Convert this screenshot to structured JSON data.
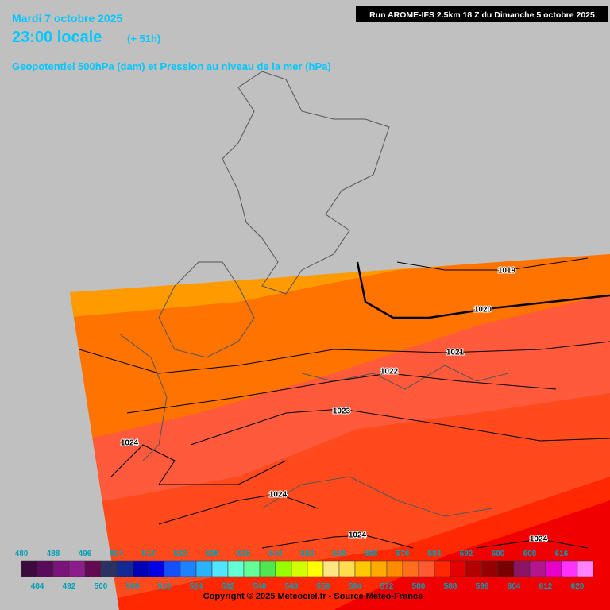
{
  "header": {
    "date": "Mardi 7 octobre 2025",
    "time": "23:00 locale",
    "lead": "(+ 51h)",
    "title": "Geopotentiel 500hPa (dam) et Pression au niveau de la mer (hPa)",
    "run": "Run AROME-IFS 2.5km 18 Z du Dimanche 5 octobre 2025"
  },
  "isobar_labels": [
    "1019",
    "1020",
    "1021",
    "1022",
    "1023",
    "1024",
    "1024",
    "1024",
    "1024"
  ],
  "legend": {
    "levels": [
      {
        "label": "480",
        "color": "#3c0a3c"
      },
      {
        "label": "484",
        "color": "#5a0a5a"
      },
      {
        "label": "488",
        "color": "#7a147a"
      },
      {
        "label": "492",
        "color": "#8c1e8c"
      },
      {
        "label": "496",
        "color": "#640a50"
      },
      {
        "label": "500",
        "color": "#2a3264"
      },
      {
        "label": "504",
        "color": "#142896"
      },
      {
        "label": "508",
        "color": "#0000b4"
      },
      {
        "label": "512",
        "color": "#0000e6"
      },
      {
        "label": "516",
        "color": "#1450ff"
      },
      {
        "label": "520",
        "color": "#1e82ff"
      },
      {
        "label": "524",
        "color": "#28b4ff"
      },
      {
        "label": "528",
        "color": "#50e6ff"
      },
      {
        "label": "532",
        "color": "#64ffd2"
      },
      {
        "label": "536",
        "color": "#64ff96"
      },
      {
        "label": "540",
        "color": "#50e650"
      },
      {
        "label": "544",
        "color": "#96ff00"
      },
      {
        "label": "548",
        "color": "#d2ff00"
      },
      {
        "label": "552",
        "color": "#ffff00"
      },
      {
        "label": "556",
        "color": "#ffe682"
      },
      {
        "label": "560",
        "color": "#ffdc50"
      },
      {
        "label": "564",
        "color": "#ffc800"
      },
      {
        "label": "568",
        "color": "#ffaa00"
      },
      {
        "label": "572",
        "color": "#ff8c00"
      },
      {
        "label": "576",
        "color": "#ff6e1e"
      },
      {
        "label": "580",
        "color": "#ff5a32"
      },
      {
        "label": "584",
        "color": "#ff2800"
      },
      {
        "label": "588",
        "color": "#e60000"
      },
      {
        "label": "592",
        "color": "#b40000"
      },
      {
        "label": "596",
        "color": "#960000"
      },
      {
        "label": "600",
        "color": "#780000"
      },
      {
        "label": "604",
        "color": "#8c1464"
      },
      {
        "label": "608",
        "color": "#b4148c"
      },
      {
        "label": "612",
        "color": "#e600c8"
      },
      {
        "label": "616",
        "color": "#ff32ff"
      },
      {
        "label": "620",
        "color": "#ff82ff"
      }
    ]
  },
  "footer": "Copyright © 2025 Meteociel.fr - Source Meteo-France"
}
